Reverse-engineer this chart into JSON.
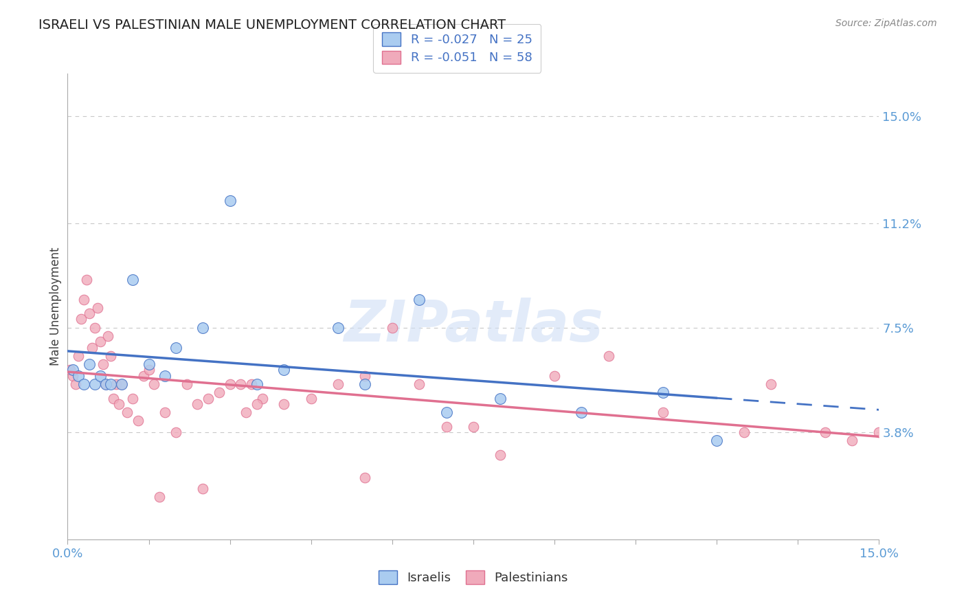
{
  "title": "ISRAELI VS PALESTINIAN MALE UNEMPLOYMENT CORRELATION CHART",
  "source": "Source: ZipAtlas.com",
  "ylabel": "Male Unemployment",
  "y_tick_values": [
    3.8,
    7.5,
    11.2,
    15.0
  ],
  "xlim": [
    0.0,
    15.0
  ],
  "ylim": [
    0.0,
    16.5
  ],
  "israeli_color": "#aaccf0",
  "palestinian_color": "#f0aabb",
  "israeli_line_color": "#4472c4",
  "palestinian_line_color": "#e07090",
  "watermark_color": "#d0dff5",
  "title_color": "#222222",
  "axis_label_color": "#5b9bd5",
  "grid_color": "#c8c8c8",
  "background_color": "#ffffff",
  "israelis_x": [
    0.1,
    0.2,
    0.3,
    0.4,
    0.5,
    0.6,
    0.7,
    0.8,
    1.0,
    1.2,
    1.5,
    1.8,
    2.0,
    2.5,
    3.0,
    3.5,
    4.0,
    5.0,
    5.5,
    6.5,
    7.0,
    8.0,
    9.5,
    11.0,
    12.0
  ],
  "israelis_y": [
    6.0,
    5.8,
    5.5,
    6.2,
    5.5,
    5.8,
    5.5,
    5.5,
    5.5,
    9.2,
    6.2,
    5.8,
    6.8,
    7.5,
    12.0,
    5.5,
    6.0,
    7.5,
    5.5,
    8.5,
    4.5,
    5.0,
    4.5,
    5.2,
    3.5
  ],
  "palestinians_x": [
    0.05,
    0.1,
    0.15,
    0.2,
    0.25,
    0.3,
    0.35,
    0.4,
    0.45,
    0.5,
    0.55,
    0.6,
    0.65,
    0.7,
    0.75,
    0.8,
    0.85,
    0.9,
    0.95,
    1.0,
    1.1,
    1.2,
    1.3,
    1.4,
    1.5,
    1.6,
    1.8,
    2.0,
    2.2,
    2.4,
    2.6,
    2.8,
    3.0,
    3.2,
    3.4,
    3.6,
    4.0,
    4.5,
    5.0,
    5.5,
    6.0,
    6.5,
    7.0,
    8.0,
    9.0,
    10.0,
    11.0,
    12.5,
    13.0,
    14.0,
    14.5,
    15.0,
    3.3,
    3.5,
    5.5,
    7.5,
    2.5,
    1.7
  ],
  "palestinians_y": [
    6.0,
    5.8,
    5.5,
    6.5,
    7.8,
    8.5,
    9.2,
    8.0,
    6.8,
    7.5,
    8.2,
    7.0,
    6.2,
    5.5,
    7.2,
    6.5,
    5.0,
    5.5,
    4.8,
    5.5,
    4.5,
    5.0,
    4.2,
    5.8,
    6.0,
    5.5,
    4.5,
    3.8,
    5.5,
    4.8,
    5.0,
    5.2,
    5.5,
    5.5,
    5.5,
    5.0,
    4.8,
    5.0,
    5.5,
    5.8,
    7.5,
    5.5,
    4.0,
    3.0,
    5.8,
    6.5,
    4.5,
    3.8,
    5.5,
    3.8,
    3.5,
    3.8,
    4.5,
    4.8,
    2.2,
    4.0,
    1.8,
    1.5
  ]
}
